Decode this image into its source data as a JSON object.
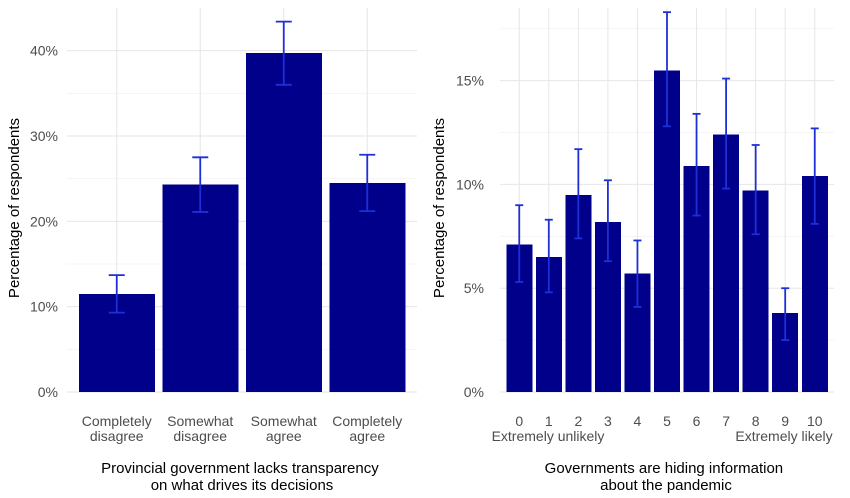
{
  "figure": {
    "background": "#ffffff",
    "bar_color": "#00008b",
    "error_color": "#1f2fd6"
  },
  "chart_data": [
    {
      "type": "bar",
      "categories": [
        [
          "Completely",
          "disagree"
        ],
        [
          "Somewhat",
          "disagree"
        ],
        [
          "Somewhat",
          "agree"
        ],
        [
          "Completely",
          "agree"
        ]
      ],
      "series": [
        {
          "values": [
            11.5,
            24.3,
            39.7,
            24.5
          ],
          "error_low": [
            9.3,
            21.1,
            36.0,
            21.2
          ],
          "error_high": [
            13.7,
            27.5,
            43.4,
            27.8
          ]
        }
      ],
      "xlabel": [
        "Provincial government lacks transparency",
        "on what drives its decisions"
      ],
      "ylabel": "Percentage of respondents",
      "ylim": [
        0,
        45
      ],
      "yticks": [
        0,
        10,
        20,
        30,
        40
      ],
      "ytick_labels": [
        "0%",
        "10%",
        "20%",
        "30%",
        "40%"
      ],
      "grid": true
    },
    {
      "type": "bar",
      "categories": [
        "0",
        "1",
        "2",
        "3",
        "4",
        "5",
        "6",
        "7",
        "8",
        "9",
        "10"
      ],
      "series": [
        {
          "values": [
            7.1,
            6.5,
            9.5,
            8.2,
            5.7,
            15.5,
            10.9,
            12.4,
            9.7,
            3.8,
            10.4
          ],
          "error_low": [
            5.3,
            4.8,
            7.4,
            6.3,
            4.1,
            12.8,
            8.5,
            9.8,
            7.6,
            2.5,
            8.1
          ],
          "error_high": [
            9.0,
            8.3,
            11.7,
            10.2,
            7.3,
            18.3,
            13.4,
            15.1,
            11.9,
            5.0,
            12.7
          ]
        }
      ],
      "scale_labels": {
        "low": "Extremely unlikely",
        "high": "Extremely likely"
      },
      "xlabel": [
        "Governments are hiding information",
        "about the pandemic"
      ],
      "ylabel": "Percentage of respondents",
      "ylim": [
        0,
        18.5
      ],
      "yticks": [
        0,
        5,
        10,
        15
      ],
      "ytick_labels": [
        "0%",
        "5%",
        "10%",
        "15%"
      ],
      "grid": true
    }
  ]
}
